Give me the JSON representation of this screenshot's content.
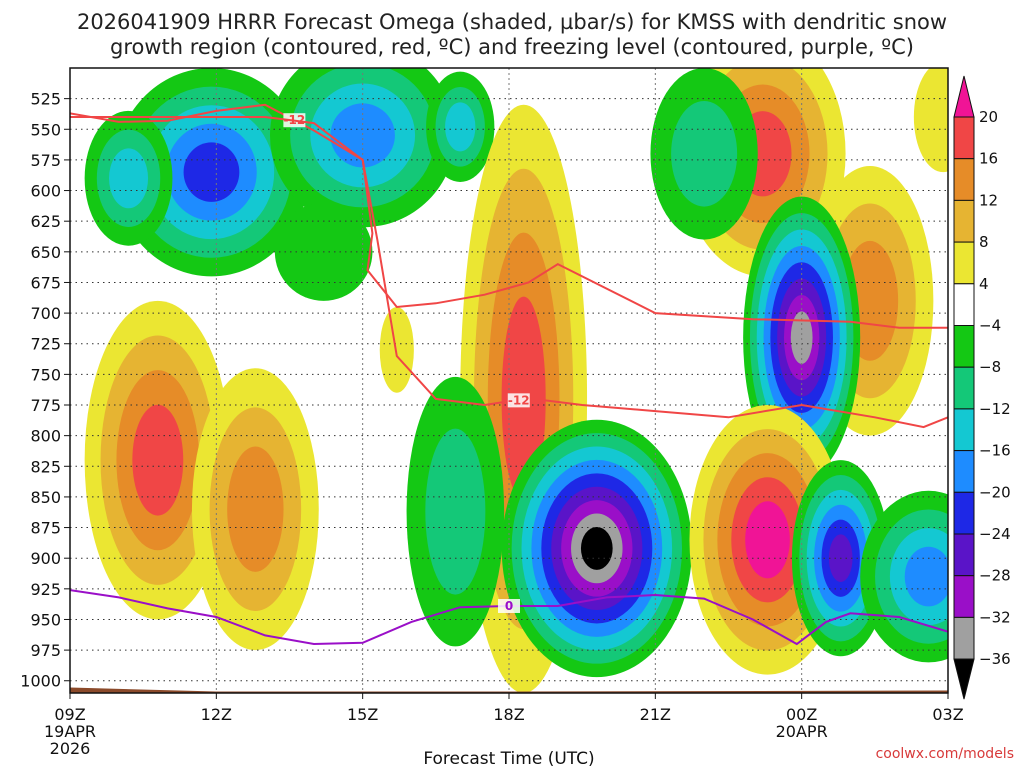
{
  "chart_data": {
    "type": "heatmap",
    "title_line1": "2026041909 HRRR Forecast Omega (shaded, µbar/s) for KMSS with dendritic snow",
    "title_line2": "growth region (contoured, red, ºC) and freezing level (contoured, purple, ºC)",
    "xlabel": "Forecast Time (UTC)",
    "credit": "coolwx.com/models",
    "x_ticks": [
      {
        "hour": 0,
        "label": "09Z",
        "sub1": "19APR",
        "sub2": "2026"
      },
      {
        "hour": 3,
        "label": "12Z",
        "sub1": "",
        "sub2": ""
      },
      {
        "hour": 6,
        "label": "15Z",
        "sub1": "",
        "sub2": ""
      },
      {
        "hour": 9,
        "label": "18Z",
        "sub1": "",
        "sub2": ""
      },
      {
        "hour": 12,
        "label": "21Z",
        "sub1": "",
        "sub2": ""
      },
      {
        "hour": 15,
        "label": "00Z",
        "sub1": "20APR",
        "sub2": ""
      },
      {
        "hour": 18,
        "label": "03Z",
        "sub1": "",
        "sub2": ""
      }
    ],
    "xlim": [
      0,
      18
    ],
    "ylim_hpa": [
      500,
      1010
    ],
    "y_ticks": [
      525,
      550,
      575,
      600,
      625,
      650,
      675,
      700,
      725,
      750,
      775,
      800,
      825,
      850,
      875,
      900,
      925,
      950,
      975,
      1000
    ],
    "colorbar": {
      "levels": [
        -36,
        -32,
        -28,
        -24,
        -20,
        -16,
        -12,
        -8,
        -4,
        4,
        8,
        12,
        16,
        20
      ],
      "labels": [
        "20",
        "16",
        "12",
        "8",
        "4",
        "−4",
        "−8",
        "−12",
        "−16",
        "−20",
        "−24",
        "−28",
        "−32",
        "−36"
      ],
      "colors": {
        "lt_-36": "#000000",
        "-36_-32": "#a0a0a0",
        "-32_-28": "#9a0fc8",
        "-28_-24": "#5a14c8",
        "-24_-20": "#1e28e6",
        "-20_-16": "#1e8cff",
        "-16_-12": "#14c8d2",
        "-12_-8": "#14c878",
        "-8_-4": "#14c814",
        "-4_4": "#ffffff",
        "4_8": "#ebe632",
        "8_12": "#e6b432",
        "12_16": "#e68c28",
        "16_20": "#f04646",
        "gt_20": "#f01496"
      }
    },
    "omega_cells": [
      {
        "x": 2.9,
        "p": 585,
        "rx": 2.0,
        "rp": 85,
        "levels": [
          -4,
          -8,
          -12,
          -16,
          -20
        ]
      },
      {
        "x": 1.2,
        "p": 590,
        "rx": 0.9,
        "rp": 55,
        "levels": [
          -4,
          -8,
          -12
        ]
      },
      {
        "x": 6.0,
        "p": 555,
        "rx": 1.9,
        "rp": 75,
        "levels": [
          -4,
          -8,
          -12,
          -16
        ]
      },
      {
        "x": 8.0,
        "p": 548,
        "rx": 0.7,
        "rp": 45,
        "levels": [
          -4,
          -8,
          -12
        ]
      },
      {
        "x": 5.2,
        "p": 650,
        "rx": 1.0,
        "rp": 40,
        "levels": [
          -4
        ]
      },
      {
        "x": 1.8,
        "p": 820,
        "rx": 1.5,
        "rp": 130,
        "levels": [
          4,
          8,
          12,
          16
        ]
      },
      {
        "x": 3.8,
        "p": 860,
        "rx": 1.3,
        "rp": 115,
        "levels": [
          4,
          8,
          12
        ]
      },
      {
        "x": 6.7,
        "p": 730,
        "rx": 0.35,
        "rp": 35,
        "levels": [
          4
        ]
      },
      {
        "x": 9.3,
        "p": 770,
        "rx": 1.3,
        "rp": 240,
        "levels": [
          4,
          8,
          12,
          16
        ]
      },
      {
        "x": 7.9,
        "p": 862,
        "rx": 1.0,
        "rp": 110,
        "levels": [
          -4,
          -8
        ]
      },
      {
        "x": 10.8,
        "p": 892,
        "rx": 1.95,
        "rp": 105,
        "levels": [
          -4,
          -8,
          -12,
          -16,
          -20,
          -24,
          -28,
          -32,
          -36
        ]
      },
      {
        "x": 14.2,
        "p": 570,
        "rx": 1.7,
        "rp": 100,
        "levels": [
          4,
          8,
          12,
          16
        ]
      },
      {
        "x": 13.0,
        "p": 570,
        "rx": 1.1,
        "rp": 70,
        "levels": [
          -4,
          -8
        ]
      },
      {
        "x": 16.4,
        "p": 690,
        "rx": 1.3,
        "rp": 110,
        "levels": [
          4,
          8,
          12
        ]
      },
      {
        "x": 15.0,
        "p": 720,
        "rx": 1.2,
        "rp": 115,
        "levels": [
          -4,
          -8,
          -12,
          -16,
          -20,
          -24,
          -28,
          -32
        ]
      },
      {
        "x": 14.3,
        "p": 885,
        "rx": 1.6,
        "rp": 110,
        "levels": [
          4,
          8,
          12,
          16,
          20
        ]
      },
      {
        "x": 15.8,
        "p": 900,
        "rx": 1.0,
        "rp": 80,
        "levels": [
          -4,
          -8,
          -12,
          -16,
          -20,
          -24
        ]
      },
      {
        "x": 17.6,
        "p": 915,
        "rx": 1.4,
        "rp": 70,
        "levels": [
          -4,
          -8,
          -12,
          -16
        ]
      },
      {
        "x": 17.9,
        "p": 540,
        "rx": 0.6,
        "rp": 45,
        "levels": [
          4
        ]
      }
    ],
    "dgz_line_upper": {
      "label": "-12",
      "x": [
        0.0,
        1.0,
        2.0,
        3.0,
        4.0,
        5.0,
        6.0,
        6.2,
        6.1,
        6.7,
        7.5,
        8.5,
        9.4,
        10.0,
        12.0,
        14.0,
        16.0,
        17.0,
        18.0
      ],
      "p": [
        537,
        544,
        543,
        535,
        530,
        551,
        575,
        635,
        665,
        695,
        692,
        685,
        675,
        660,
        700,
        705,
        707,
        712,
        712
      ],
      "label_x": 4.6
    },
    "dgz_line_lower": {
      "label": "-12",
      "x": [
        0.0,
        2.0,
        4.0,
        5.0,
        6.0,
        6.3,
        6.7,
        7.5,
        8.5,
        9.0,
        9.5,
        10.5,
        12.0,
        13.5,
        15.0,
        16.5,
        17.5,
        18.0
      ],
      "p": [
        540,
        540,
        540,
        545,
        575,
        640,
        735,
        770,
        775,
        772,
        770,
        775,
        780,
        785,
        775,
        785,
        793,
        785
      ],
      "label_x": 9.2
    },
    "freezing_line": {
      "label": "0",
      "x": [
        0.0,
        1.0,
        2.0,
        3.0,
        4.0,
        5.0,
        6.0,
        7.0,
        8.0,
        9.0,
        10.0,
        11.0,
        12.0,
        13.0,
        14.0,
        14.9,
        15.5,
        16.0,
        17.0,
        18.0
      ],
      "p": [
        926,
        932,
        941,
        948,
        963,
        970,
        969,
        952,
        940,
        939,
        939,
        932,
        930,
        933,
        950,
        970,
        952,
        945,
        948,
        960
      ],
      "label_x": 9.0
    },
    "terrain_hpa": 1008
  }
}
